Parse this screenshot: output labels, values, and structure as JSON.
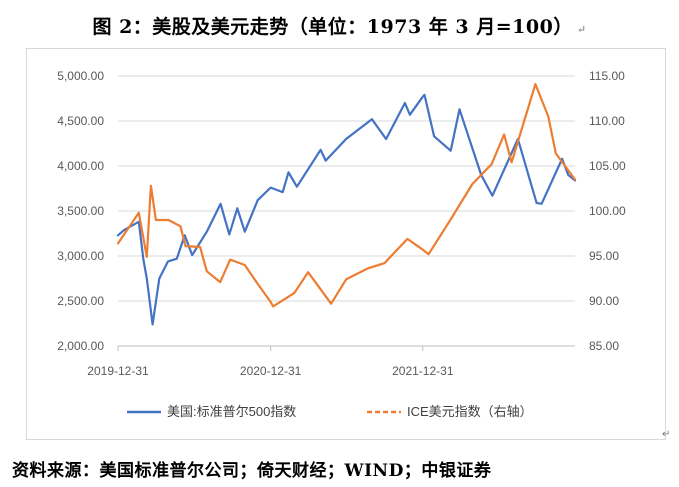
{
  "page": {
    "title": "图 2：美股及美元走势（单位：1973 年 3 月=100）",
    "return_mark": "↵",
    "source": "资料来源：美国标准普尔公司；倚天财经；WIND；中银证券",
    "corner_mark": "↵"
  },
  "chart_data": {
    "type": "line",
    "title": "美股及美元走势（单位：1973 年 3 月=100）",
    "y_left": {
      "min": 2000,
      "max": 5000,
      "step": 500,
      "tick_labels": [
        "2,000.00",
        "2,500.00",
        "3,000.00",
        "3,500.00",
        "4,000.00",
        "4,500.00",
        "5,000.00"
      ]
    },
    "y_right": {
      "min": 85,
      "max": 115,
      "step": 5,
      "tick_labels": [
        "85.00",
        "90.00",
        "95.00",
        "100.00",
        "105.00",
        "110.00",
        "115.00"
      ]
    },
    "x_range": [
      "2019-12-31",
      "2022-12-31"
    ],
    "x_tick_labels": [
      "2019-12-31",
      "2020-12-31",
      "2021-12-31"
    ],
    "grid": true,
    "legend_position": "bottom",
    "series": [
      {
        "name": "美国:标准普尔500指数",
        "axis": "left",
        "color": "#4472C4",
        "style": "solid",
        "points": [
          {
            "x": "2019-12-31",
            "y": 3230
          },
          {
            "x": "2020-01-15",
            "y": 3290
          },
          {
            "x": "2020-02-19",
            "y": 3380
          },
          {
            "x": "2020-03-01",
            "y": 2960
          },
          {
            "x": "2020-03-09",
            "y": 2750
          },
          {
            "x": "2020-03-23",
            "y": 2240
          },
          {
            "x": "2020-04-08",
            "y": 2750
          },
          {
            "x": "2020-04-29",
            "y": 2940
          },
          {
            "x": "2020-05-20",
            "y": 2970
          },
          {
            "x": "2020-06-08",
            "y": 3230
          },
          {
            "x": "2020-06-26",
            "y": 3010
          },
          {
            "x": "2020-07-31",
            "y": 3270
          },
          {
            "x": "2020-09-02",
            "y": 3580
          },
          {
            "x": "2020-09-23",
            "y": 3240
          },
          {
            "x": "2020-10-12",
            "y": 3530
          },
          {
            "x": "2020-10-30",
            "y": 3270
          },
          {
            "x": "2020-11-30",
            "y": 3620
          },
          {
            "x": "2020-12-31",
            "y": 3760
          },
          {
            "x": "2021-01-29",
            "y": 3710
          },
          {
            "x": "2021-02-12",
            "y": 3930
          },
          {
            "x": "2021-03-04",
            "y": 3770
          },
          {
            "x": "2021-04-30",
            "y": 4180
          },
          {
            "x": "2021-05-12",
            "y": 4060
          },
          {
            "x": "2021-06-30",
            "y": 4300
          },
          {
            "x": "2021-08-31",
            "y": 4520
          },
          {
            "x": "2021-10-04",
            "y": 4300
          },
          {
            "x": "2021-11-18",
            "y": 4700
          },
          {
            "x": "2021-11-30",
            "y": 4570
          },
          {
            "x": "2021-12-31",
            "y": 4770
          },
          {
            "x": "2022-01-04",
            "y": 4790
          },
          {
            "x": "2022-01-27",
            "y": 4330
          },
          {
            "x": "2022-03-08",
            "y": 4170
          },
          {
            "x": "2022-03-29",
            "y": 4630
          },
          {
            "x": "2022-05-20",
            "y": 3900
          },
          {
            "x": "2022-06-16",
            "y": 3670
          },
          {
            "x": "2022-08-16",
            "y": 4300
          },
          {
            "x": "2022-09-30",
            "y": 3590
          },
          {
            "x": "2022-10-12",
            "y": 3580
          },
          {
            "x": "2022-11-30",
            "y": 4080
          },
          {
            "x": "2022-12-15",
            "y": 3900
          },
          {
            "x": "2022-12-31",
            "y": 3840
          }
        ]
      },
      {
        "name": "ICE美元指数（右轴）",
        "axis": "right",
        "color": "#ED7D31",
        "style": "dashed",
        "points": [
          {
            "x": "2019-12-31",
            "y": 96.4
          },
          {
            "x": "2020-02-19",
            "y": 99.8
          },
          {
            "x": "2020-03-09",
            "y": 94.9
          },
          {
            "x": "2020-03-19",
            "y": 102.8
          },
          {
            "x": "2020-03-31",
            "y": 99.0
          },
          {
            "x": "2020-04-30",
            "y": 99.0
          },
          {
            "x": "2020-05-29",
            "y": 98.3
          },
          {
            "x": "2020-06-10",
            "y": 96.1
          },
          {
            "x": "2020-07-15",
            "y": 96.0
          },
          {
            "x": "2020-07-31",
            "y": 93.3
          },
          {
            "x": "2020-09-01",
            "y": 92.1
          },
          {
            "x": "2020-09-25",
            "y": 94.6
          },
          {
            "x": "2020-10-30",
            "y": 94.0
          },
          {
            "x": "2020-11-30",
            "y": 91.9
          },
          {
            "x": "2020-12-31",
            "y": 89.9
          },
          {
            "x": "2021-01-06",
            "y": 89.4
          },
          {
            "x": "2021-02-26",
            "y": 90.9
          },
          {
            "x": "2021-03-31",
            "y": 93.2
          },
          {
            "x": "2021-05-25",
            "y": 89.7
          },
          {
            "x": "2021-06-30",
            "y": 92.4
          },
          {
            "x": "2021-08-20",
            "y": 93.6
          },
          {
            "x": "2021-09-30",
            "y": 94.2
          },
          {
            "x": "2021-11-24",
            "y": 96.9
          },
          {
            "x": "2021-12-31",
            "y": 95.7
          },
          {
            "x": "2022-01-14",
            "y": 95.2
          },
          {
            "x": "2022-03-07",
            "y": 99.0
          },
          {
            "x": "2022-04-29",
            "y": 103.0
          },
          {
            "x": "2022-06-14",
            "y": 105.2
          },
          {
            "x": "2022-07-14",
            "y": 108.5
          },
          {
            "x": "2022-08-01",
            "y": 105.4
          },
          {
            "x": "2022-09-27",
            "y": 114.1
          },
          {
            "x": "2022-10-28",
            "y": 110.5
          },
          {
            "x": "2022-11-15",
            "y": 106.4
          },
          {
            "x": "2022-12-31",
            "y": 103.5
          }
        ]
      }
    ]
  }
}
